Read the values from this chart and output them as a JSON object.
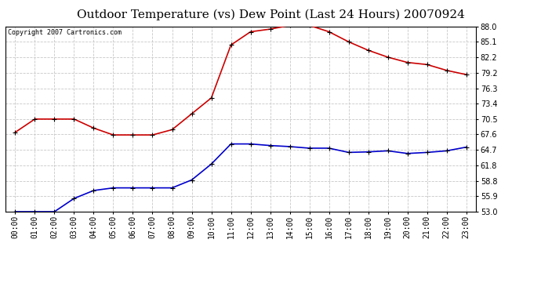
{
  "title": "Outdoor Temperature (vs) Dew Point (Last 24 Hours) 20070924",
  "copyright_text": "Copyright 2007 Cartronics.com",
  "background_color": "#ffffff",
  "plot_bg_color": "#ffffff",
  "grid_color": "#c8c8c8",
  "hours": [
    0,
    1,
    2,
    3,
    4,
    5,
    6,
    7,
    8,
    9,
    10,
    11,
    12,
    13,
    14,
    15,
    16,
    17,
    18,
    19,
    20,
    21,
    22,
    23
  ],
  "temp_red": [
    68.0,
    70.5,
    70.5,
    70.5,
    68.8,
    67.5,
    67.5,
    67.5,
    68.5,
    71.5,
    74.5,
    84.5,
    87.0,
    87.5,
    88.2,
    88.2,
    87.0,
    85.1,
    83.5,
    82.2,
    81.2,
    80.8,
    79.7,
    78.9
  ],
  "dew_blue": [
    53.0,
    53.0,
    53.0,
    55.5,
    57.0,
    57.5,
    57.5,
    57.5,
    57.5,
    59.0,
    62.0,
    65.8,
    65.8,
    65.5,
    65.3,
    65.0,
    65.0,
    64.2,
    64.3,
    64.5,
    64.0,
    64.2,
    64.5,
    65.2
  ],
  "ylim_min": 53.0,
  "ylim_max": 88.0,
  "yticks": [
    53.0,
    55.9,
    58.8,
    61.8,
    64.7,
    67.6,
    70.5,
    73.4,
    76.3,
    79.2,
    82.2,
    85.1,
    88.0
  ],
  "red_color": "#cc0000",
  "blue_color": "#0000cc",
  "marker_color": "#000000",
  "title_fontsize": 11,
  "copyright_fontsize": 6,
  "tick_fontsize": 7,
  "ylabel_fontsize": 7
}
